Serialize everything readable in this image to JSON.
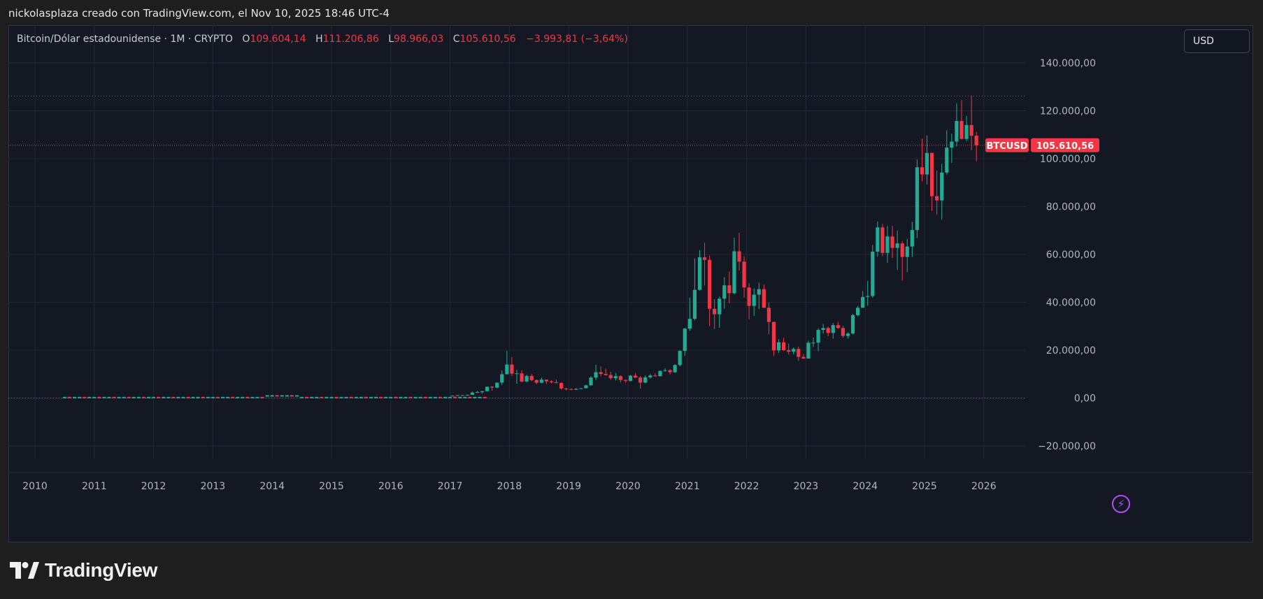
{
  "header": {
    "attribution": "nickolasplaza creado con TradingView.com, el Nov 10, 2025 18:46 UTC-4"
  },
  "legend": {
    "symbol": "Bitcoin/Dólar estadounidense · 1M · CRYPTO",
    "o_label": "O",
    "o_value": "109.604,14",
    "h_label": "H",
    "h_value": "111.206,86",
    "l_label": "L",
    "l_value": "98.966,03",
    "c_label": "C",
    "c_value": "105.610,56",
    "change": "−3.993,81 (−3,64%)"
  },
  "currency_button": "USD",
  "price_tag": {
    "symbol": "BTCUSD",
    "value": "105.610,56"
  },
  "logo": {
    "text": "TradingView",
    "icon": "tradingview-logo-icon"
  },
  "colors": {
    "up": "#22ab94",
    "down": "#f23645",
    "background": "#141823",
    "grid": "#232836",
    "axis_text": "#b2b5be"
  },
  "chart_data": {
    "type": "candlestick",
    "interval": "1M",
    "title": "Bitcoin/Dólar estadounidense · 1M · CRYPTO",
    "ylim": [
      -20000,
      145000
    ],
    "xlim": [
      2009.8,
      2026.5
    ],
    "y_ticks": [
      140000,
      120000,
      100000,
      80000,
      60000,
      40000,
      20000,
      0,
      -20000
    ],
    "y_tick_labels": [
      "140.000,00",
      "120.000,00",
      "100.000,00",
      "80.000,00",
      "60.000,00",
      "40.000,00",
      "20.000,00",
      "0,00",
      "−20.000,00"
    ],
    "x_ticks": [
      2010,
      2011,
      2012,
      2013,
      2014,
      2015,
      2016,
      2017,
      2018,
      2019,
      2020,
      2021,
      2022,
      2023,
      2024,
      2025,
      2026
    ],
    "x_tick_labels": [
      "2010",
      "2011",
      "2012",
      "2013",
      "2014",
      "2015",
      "2016",
      "2017",
      "2018",
      "2019",
      "2020",
      "2021",
      "2022",
      "2023",
      "2024",
      "2025",
      "2026"
    ],
    "current_price": 105610.56,
    "ath_line": 126200,
    "grid": true,
    "candles": [
      {
        "t": "2017-01",
        "o": 960,
        "h": 1150,
        "l": 760,
        "c": 970
      },
      {
        "t": "2017-02",
        "o": 970,
        "h": 1200,
        "l": 920,
        "c": 1190
      },
      {
        "t": "2017-03",
        "o": 1190,
        "h": 1350,
        "l": 890,
        "c": 1080
      },
      {
        "t": "2017-04",
        "o": 1080,
        "h": 1440,
        "l": 1060,
        "c": 1350
      },
      {
        "t": "2017-05",
        "o": 1350,
        "h": 2760,
        "l": 1340,
        "c": 2300
      },
      {
        "t": "2017-06",
        "o": 2300,
        "h": 3000,
        "l": 2100,
        "c": 2480
      },
      {
        "t": "2017-07",
        "o": 2480,
        "h": 2950,
        "l": 1830,
        "c": 2870
      },
      {
        "t": "2017-08",
        "o": 2870,
        "h": 4760,
        "l": 2700,
        "c": 4730
      },
      {
        "t": "2017-09",
        "o": 4730,
        "h": 5000,
        "l": 2980,
        "c": 4350
      },
      {
        "t": "2017-10",
        "o": 4350,
        "h": 6450,
        "l": 4140,
        "c": 6450
      },
      {
        "t": "2017-11",
        "o": 6450,
        "h": 11500,
        "l": 5500,
        "c": 9950
      },
      {
        "t": "2017-12",
        "o": 9950,
        "h": 19700,
        "l": 9900,
        "c": 14000
      },
      {
        "t": "2018-01",
        "o": 14000,
        "h": 17200,
        "l": 9200,
        "c": 10200
      },
      {
        "t": "2018-02",
        "o": 10200,
        "h": 11800,
        "l": 6000,
        "c": 10300
      },
      {
        "t": "2018-03",
        "o": 10300,
        "h": 11700,
        "l": 6600,
        "c": 6900
      },
      {
        "t": "2018-04",
        "o": 6900,
        "h": 9750,
        "l": 6500,
        "c": 9250
      },
      {
        "t": "2018-05",
        "o": 9250,
        "h": 10000,
        "l": 7000,
        "c": 7500
      },
      {
        "t": "2018-06",
        "o": 7500,
        "h": 7750,
        "l": 5750,
        "c": 6400
      },
      {
        "t": "2018-07",
        "o": 6400,
        "h": 8500,
        "l": 6100,
        "c": 7700
      },
      {
        "t": "2018-08",
        "o": 7700,
        "h": 7760,
        "l": 5900,
        "c": 7000
      },
      {
        "t": "2018-09",
        "o": 7000,
        "h": 7400,
        "l": 6100,
        "c": 6600
      },
      {
        "t": "2018-10",
        "o": 6600,
        "h": 7700,
        "l": 6200,
        "c": 6300
      },
      {
        "t": "2018-11",
        "o": 6300,
        "h": 6600,
        "l": 3550,
        "c": 4000
      },
      {
        "t": "2018-12",
        "o": 4000,
        "h": 4300,
        "l": 3150,
        "c": 3700
      },
      {
        "t": "2019-01",
        "o": 3700,
        "h": 4100,
        "l": 3350,
        "c": 3450
      },
      {
        "t": "2019-02",
        "o": 3450,
        "h": 4200,
        "l": 3400,
        "c": 3800
      },
      {
        "t": "2019-03",
        "o": 3800,
        "h": 4100,
        "l": 3700,
        "c": 4100
      },
      {
        "t": "2019-04",
        "o": 4100,
        "h": 5600,
        "l": 4050,
        "c": 5300
      },
      {
        "t": "2019-05",
        "o": 5300,
        "h": 9100,
        "l": 5300,
        "c": 8550
      },
      {
        "t": "2019-06",
        "o": 8550,
        "h": 13900,
        "l": 7500,
        "c": 10800
      },
      {
        "t": "2019-07",
        "o": 10800,
        "h": 13200,
        "l": 9100,
        "c": 10100
      },
      {
        "t": "2019-08",
        "o": 10100,
        "h": 12300,
        "l": 9400,
        "c": 9600
      },
      {
        "t": "2019-09",
        "o": 9600,
        "h": 10900,
        "l": 7700,
        "c": 8300
      },
      {
        "t": "2019-10",
        "o": 8300,
        "h": 10500,
        "l": 7300,
        "c": 9150
      },
      {
        "t": "2019-11",
        "o": 9150,
        "h": 9500,
        "l": 6500,
        "c": 7550
      },
      {
        "t": "2019-12",
        "o": 7550,
        "h": 7750,
        "l": 6400,
        "c": 7200
      },
      {
        "t": "2020-01",
        "o": 7200,
        "h": 9600,
        "l": 6900,
        "c": 9350
      },
      {
        "t": "2020-02",
        "o": 9350,
        "h": 10500,
        "l": 8400,
        "c": 8550
      },
      {
        "t": "2020-03",
        "o": 8550,
        "h": 9200,
        "l": 3850,
        "c": 6450
      },
      {
        "t": "2020-04",
        "o": 6450,
        "h": 9450,
        "l": 6150,
        "c": 8650
      },
      {
        "t": "2020-05",
        "o": 8650,
        "h": 10100,
        "l": 8100,
        "c": 9450
      },
      {
        "t": "2020-06",
        "o": 9450,
        "h": 10400,
        "l": 8900,
        "c": 9150
      },
      {
        "t": "2020-07",
        "o": 9150,
        "h": 11450,
        "l": 8950,
        "c": 11350
      },
      {
        "t": "2020-08",
        "o": 11350,
        "h": 12500,
        "l": 10950,
        "c": 11650
      },
      {
        "t": "2020-09",
        "o": 11650,
        "h": 12050,
        "l": 9900,
        "c": 10800
      },
      {
        "t": "2020-10",
        "o": 10800,
        "h": 14100,
        "l": 10400,
        "c": 13800
      },
      {
        "t": "2020-11",
        "o": 13800,
        "h": 19900,
        "l": 13200,
        "c": 19700
      },
      {
        "t": "2020-12",
        "o": 19700,
        "h": 29300,
        "l": 17600,
        "c": 29000
      },
      {
        "t": "2021-01",
        "o": 29000,
        "h": 41950,
        "l": 28100,
        "c": 33100
      },
      {
        "t": "2021-02",
        "o": 33100,
        "h": 58350,
        "l": 32400,
        "c": 45200
      },
      {
        "t": "2021-03",
        "o": 45200,
        "h": 61800,
        "l": 44950,
        "c": 58800
      },
      {
        "t": "2021-04",
        "o": 58800,
        "h": 64850,
        "l": 47000,
        "c": 57700
      },
      {
        "t": "2021-05",
        "o": 57700,
        "h": 59500,
        "l": 30000,
        "c": 37300
      },
      {
        "t": "2021-06",
        "o": 37300,
        "h": 41300,
        "l": 28800,
        "c": 35000
      },
      {
        "t": "2021-07",
        "o": 35000,
        "h": 42400,
        "l": 29300,
        "c": 41500
      },
      {
        "t": "2021-08",
        "o": 41500,
        "h": 50500,
        "l": 37300,
        "c": 47100
      },
      {
        "t": "2021-09",
        "o": 47100,
        "h": 52900,
        "l": 39600,
        "c": 43800
      },
      {
        "t": "2021-10",
        "o": 43800,
        "h": 67000,
        "l": 43300,
        "c": 61300
      },
      {
        "t": "2021-11",
        "o": 61300,
        "h": 69000,
        "l": 53300,
        "c": 57000
      },
      {
        "t": "2021-12",
        "o": 57000,
        "h": 59100,
        "l": 42000,
        "c": 46200
      },
      {
        "t": "2022-01",
        "o": 46200,
        "h": 47900,
        "l": 32900,
        "c": 38500
      },
      {
        "t": "2022-02",
        "o": 38500,
        "h": 45800,
        "l": 34300,
        "c": 43200
      },
      {
        "t": "2022-03",
        "o": 43200,
        "h": 48200,
        "l": 37200,
        "c": 45500
      },
      {
        "t": "2022-04",
        "o": 45500,
        "h": 47400,
        "l": 37700,
        "c": 37700
      },
      {
        "t": "2022-05",
        "o": 37700,
        "h": 39900,
        "l": 26700,
        "c": 31800
      },
      {
        "t": "2022-06",
        "o": 31800,
        "h": 31900,
        "l": 17600,
        "c": 19900
      },
      {
        "t": "2022-07",
        "o": 19900,
        "h": 24600,
        "l": 18800,
        "c": 23300
      },
      {
        "t": "2022-08",
        "o": 23300,
        "h": 25200,
        "l": 19600,
        "c": 20000
      },
      {
        "t": "2022-09",
        "o": 20000,
        "h": 22800,
        "l": 18200,
        "c": 19400
      },
      {
        "t": "2022-10",
        "o": 19400,
        "h": 21100,
        "l": 18200,
        "c": 20500
      },
      {
        "t": "2022-11",
        "o": 20500,
        "h": 21500,
        "l": 15500,
        "c": 17200
      },
      {
        "t": "2022-12",
        "o": 17200,
        "h": 18400,
        "l": 16300,
        "c": 16500
      },
      {
        "t": "2023-01",
        "o": 16500,
        "h": 23950,
        "l": 16500,
        "c": 23100
      },
      {
        "t": "2023-02",
        "o": 23100,
        "h": 25250,
        "l": 21350,
        "c": 23150
      },
      {
        "t": "2023-03",
        "o": 23150,
        "h": 29200,
        "l": 19550,
        "c": 28450
      },
      {
        "t": "2023-04",
        "o": 28450,
        "h": 31050,
        "l": 26950,
        "c": 29250
      },
      {
        "t": "2023-05",
        "o": 29250,
        "h": 29850,
        "l": 25800,
        "c": 27200
      },
      {
        "t": "2023-06",
        "o": 27200,
        "h": 31400,
        "l": 24800,
        "c": 30450
      },
      {
        "t": "2023-07",
        "o": 30450,
        "h": 31800,
        "l": 28900,
        "c": 29250
      },
      {
        "t": "2023-08",
        "o": 29250,
        "h": 30200,
        "l": 25150,
        "c": 25950
      },
      {
        "t": "2023-09",
        "o": 25950,
        "h": 27500,
        "l": 24900,
        "c": 26950
      },
      {
        "t": "2023-10",
        "o": 26950,
        "h": 35200,
        "l": 26550,
        "c": 34650
      },
      {
        "t": "2023-11",
        "o": 34650,
        "h": 38450,
        "l": 34150,
        "c": 37700
      },
      {
        "t": "2023-12",
        "o": 37700,
        "h": 44700,
        "l": 37650,
        "c": 42250
      },
      {
        "t": "2024-01",
        "o": 42250,
        "h": 48950,
        "l": 38550,
        "c": 42600
      },
      {
        "t": "2024-02",
        "o": 42600,
        "h": 63950,
        "l": 41900,
        "c": 61150
      },
      {
        "t": "2024-03",
        "o": 61150,
        "h": 73800,
        "l": 59100,
        "c": 71300
      },
      {
        "t": "2024-04",
        "o": 71300,
        "h": 72800,
        "l": 59200,
        "c": 60650
      },
      {
        "t": "2024-05",
        "o": 60650,
        "h": 71950,
        "l": 56550,
        "c": 67500
      },
      {
        "t": "2024-06",
        "o": 67500,
        "h": 71950,
        "l": 58450,
        "c": 62700
      },
      {
        "t": "2024-07",
        "o": 62700,
        "h": 70000,
        "l": 53500,
        "c": 64600
      },
      {
        "t": "2024-08",
        "o": 64600,
        "h": 65600,
        "l": 49050,
        "c": 58950
      },
      {
        "t": "2024-09",
        "o": 58950,
        "h": 66500,
        "l": 52550,
        "c": 63300
      },
      {
        "t": "2024-10",
        "o": 63300,
        "h": 73600,
        "l": 58950,
        "c": 70200
      },
      {
        "t": "2024-11",
        "o": 70200,
        "h": 99600,
        "l": 66850,
        "c": 96400
      },
      {
        "t": "2024-12",
        "o": 96400,
        "h": 108350,
        "l": 90500,
        "c": 93400
      },
      {
        "t": "2025-01",
        "o": 93400,
        "h": 109600,
        "l": 89200,
        "c": 102400
      },
      {
        "t": "2025-02",
        "o": 102400,
        "h": 102500,
        "l": 78200,
        "c": 84350
      },
      {
        "t": "2025-03",
        "o": 84350,
        "h": 95000,
        "l": 76600,
        "c": 82550
      },
      {
        "t": "2025-04",
        "o": 82550,
        "h": 97900,
        "l": 74500,
        "c": 94200
      },
      {
        "t": "2025-05",
        "o": 94200,
        "h": 111900,
        "l": 93350,
        "c": 104600
      },
      {
        "t": "2025-06",
        "o": 104600,
        "h": 110400,
        "l": 98200,
        "c": 107150
      },
      {
        "t": "2025-07",
        "o": 107150,
        "h": 123200,
        "l": 105100,
        "c": 115750
      },
      {
        "t": "2025-08",
        "o": 115750,
        "h": 124500,
        "l": 108000,
        "c": 108250
      },
      {
        "t": "2025-09",
        "o": 108250,
        "h": 117900,
        "l": 107300,
        "c": 114050
      },
      {
        "t": "2025-10",
        "o": 114050,
        "h": 126200,
        "l": 103500,
        "c": 109600
      },
      {
        "t": "2025-11",
        "o": 109604.14,
        "h": 111206.86,
        "l": 98966.03,
        "c": 105610.56
      }
    ]
  }
}
